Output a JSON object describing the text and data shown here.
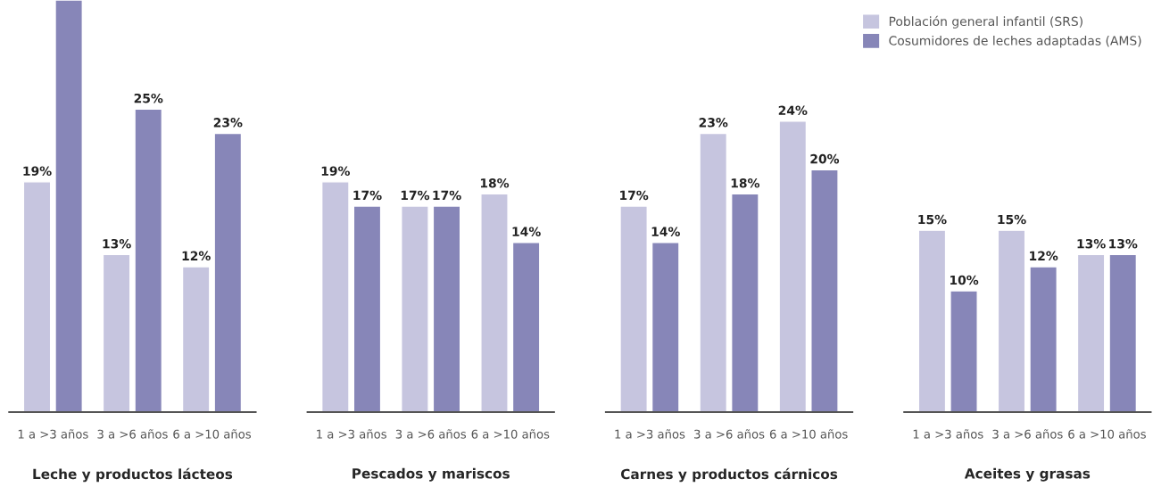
{
  "chart_data": [
    {
      "type": "bar",
      "xlabel": "Leche y productos lácteos",
      "categories": [
        "1 a >3 años",
        "3 a >6 años",
        "6 a >10 años"
      ],
      "series": [
        {
          "color": "#c6c5df",
          "values": [
            19,
            13,
            12
          ],
          "value_labels": [
            "19%",
            "13%",
            "12%"
          ]
        },
        {
          "color": "#8786b8",
          "values": [
            34,
            25,
            23
          ],
          "value_labels": [
            null,
            "25%",
            "23%"
          ]
        }
      ]
    },
    {
      "type": "bar",
      "xlabel": "Pescados y mariscos",
      "categories": [
        "1 a >3 años",
        "3 a >6 años",
        "6 a >10 años"
      ],
      "series": [
        {
          "color": "#c6c5df",
          "values": [
            19,
            17,
            18
          ],
          "value_labels": [
            "19%",
            "17%",
            "18%"
          ]
        },
        {
          "color": "#8786b8",
          "values": [
            17,
            17,
            14
          ],
          "value_labels": [
            "17%",
            "17%",
            "14%"
          ]
        }
      ]
    },
    {
      "type": "bar",
      "xlabel": "Carnes y productos cárnicos",
      "categories": [
        "1 a >3 años",
        "3 a >6 años",
        "6 a >10 años"
      ],
      "series": [
        {
          "color": "#c6c5df",
          "values": [
            17,
            23,
            24
          ],
          "value_labels": [
            "17%",
            "23%",
            "24%"
          ]
        },
        {
          "color": "#8786b8",
          "values": [
            14,
            18,
            20
          ],
          "value_labels": [
            "14%",
            "18%",
            "20%"
          ]
        }
      ]
    },
    {
      "type": "bar",
      "xlabel": "Aceites y grasas",
      "categories": [
        "1 a >3 años",
        "3 a >6 años",
        "6 a >10 años"
      ],
      "legend": "top",
      "series": [
        {
          "name": "Población general infantil (SRS)",
          "color": "#c6c5df",
          "values": [
            15,
            15,
            13
          ],
          "value_labels": [
            "15%",
            "15%",
            "13%"
          ]
        },
        {
          "name": "Cosumidores de leches adaptadas (AMS)",
          "color": "#8786b8",
          "values": [
            10,
            12,
            13
          ],
          "value_labels": [
            "10%",
            "12%",
            "13%"
          ]
        }
      ]
    }
  ]
}
